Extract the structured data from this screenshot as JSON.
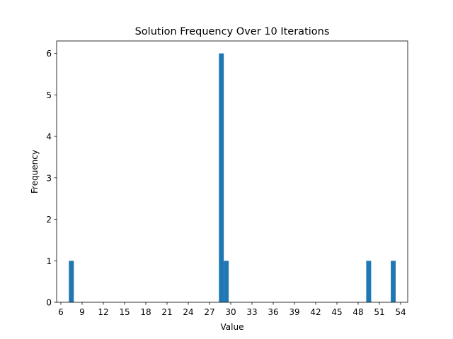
{
  "chart_data": {
    "type": "bar",
    "title": "Solution Frequency Over 10 Iterations",
    "xlabel": "Value",
    "ylabel": "Frequency",
    "xlim": [
      5.4,
      55.0
    ],
    "ylim": [
      0,
      6.3
    ],
    "xticks": [
      "6",
      "9",
      "12",
      "15",
      "18",
      "21",
      "24",
      "27",
      "30",
      "33",
      "36",
      "39",
      "42",
      "45",
      "48",
      "51",
      "54"
    ],
    "yticks": [
      "0",
      "1",
      "2",
      "3",
      "4",
      "5",
      "6"
    ],
    "bar_color": "#1f77b4",
    "grid": false,
    "bars": [
      {
        "x_start": 7.13,
        "x_end": 7.83,
        "value": 1
      },
      {
        "x_start": 28.33,
        "x_end": 29.02,
        "value": 6
      },
      {
        "x_start": 29.02,
        "x_end": 29.71,
        "value": 1
      },
      {
        "x_start": 49.14,
        "x_end": 49.84,
        "value": 1
      },
      {
        "x_start": 52.61,
        "x_end": 53.3,
        "value": 1
      }
    ]
  }
}
